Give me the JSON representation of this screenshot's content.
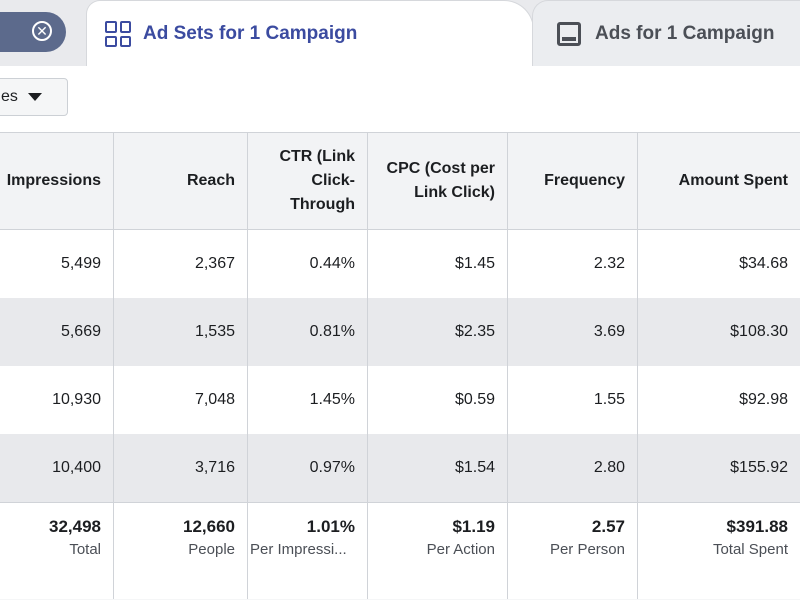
{
  "tabs": {
    "closed_icon": "close-circle-icon",
    "active": {
      "label": "Ad Sets for 1 Campaign",
      "icon": "grid-icon"
    },
    "inactive": {
      "label": "Ads for 1 Campaign",
      "icon": "ad-icon"
    }
  },
  "toolbar": {
    "filter_label": "es"
  },
  "table": {
    "headers": [
      "Impressions",
      "Reach",
      "CTR (Link Click-Through",
      "CPC (Cost per Link Click)",
      "Frequency",
      "Amount Spent"
    ],
    "rows": [
      [
        "5,499",
        "2,367",
        "0.44%",
        "$1.45",
        "2.32",
        "$34.68"
      ],
      [
        "5,669",
        "1,535",
        "0.81%",
        "$2.35",
        "3.69",
        "$108.30"
      ],
      [
        "10,930",
        "7,048",
        "1.45%",
        "$0.59",
        "1.55",
        "$92.98"
      ],
      [
        "10,400",
        "3,716",
        "0.97%",
        "$1.54",
        "2.80",
        "$155.92"
      ]
    ],
    "totals": [
      {
        "value": "32,498",
        "label": "Total"
      },
      {
        "value": "12,660",
        "label": "People"
      },
      {
        "value": "1.01%",
        "label": "Per Impressi..."
      },
      {
        "value": "$1.19",
        "label": "Per Action"
      },
      {
        "value": "2.57",
        "label": "Per Person"
      },
      {
        "value": "$391.88",
        "label": "Total Spent"
      }
    ]
  },
  "colors": {
    "accent": "#3b4ba0",
    "pill": "#5c6a8c",
    "stripe": "#e8e9ec"
  }
}
